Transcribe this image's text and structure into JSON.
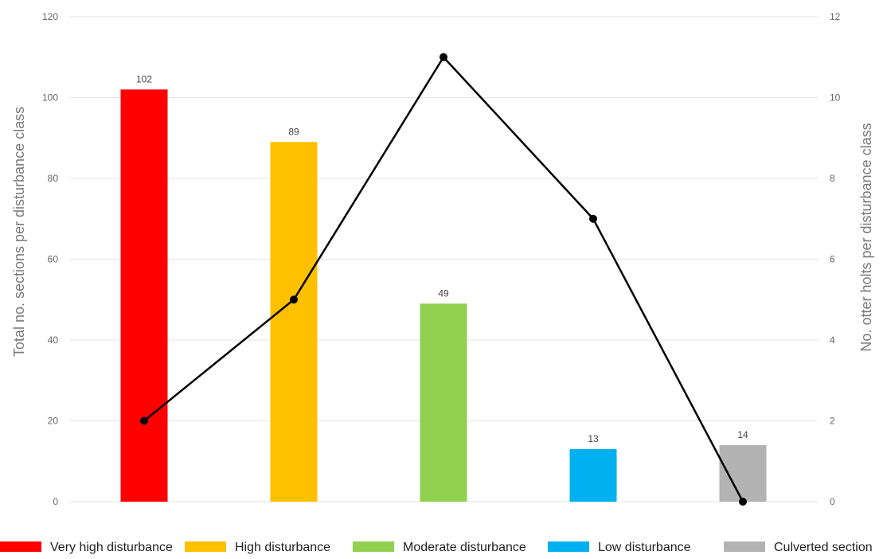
{
  "chart_data": {
    "type": "bar",
    "categories": [
      "Very high disturbance",
      "High disturbance",
      "Moderate disturbance",
      "Low disturbance",
      "Culverted section"
    ],
    "series": [
      {
        "type": "bar",
        "axis": "left",
        "values": [
          102,
          89,
          49,
          13,
          14
        ],
        "data_labels": [
          "102",
          "89",
          "49",
          "13",
          "14"
        ],
        "colors": [
          "#ff0000",
          "#ffc000",
          "#92d050",
          "#00b0f0",
          "#b3b3b3"
        ]
      },
      {
        "type": "line",
        "axis": "right",
        "values": [
          2,
          5,
          11,
          7,
          0
        ],
        "color": "#000000"
      }
    ],
    "ylabel": "Total no. sections per disturbance class",
    "y2label": "No. otter holts per disturbance class",
    "ylim": [
      0,
      120
    ],
    "y2lim": [
      0,
      12
    ],
    "yticks": [
      "0",
      "20",
      "40",
      "60",
      "80",
      "100",
      "120"
    ],
    "y2ticks": [
      "0",
      "2",
      "4",
      "6",
      "8",
      "10",
      "12"
    ],
    "grid": true,
    "legend": {
      "placement": "bottom",
      "entries": [
        {
          "label": "Very high disturbance",
          "color": "#ff0000"
        },
        {
          "label": "High disturbance",
          "color": "#ffc000"
        },
        {
          "label": "Moderate disturbance",
          "color": "#92d050"
        },
        {
          "label": "Low disturbance",
          "color": "#00b0f0"
        },
        {
          "label": "Culverted section",
          "color": "#b3b3b3"
        }
      ]
    }
  }
}
